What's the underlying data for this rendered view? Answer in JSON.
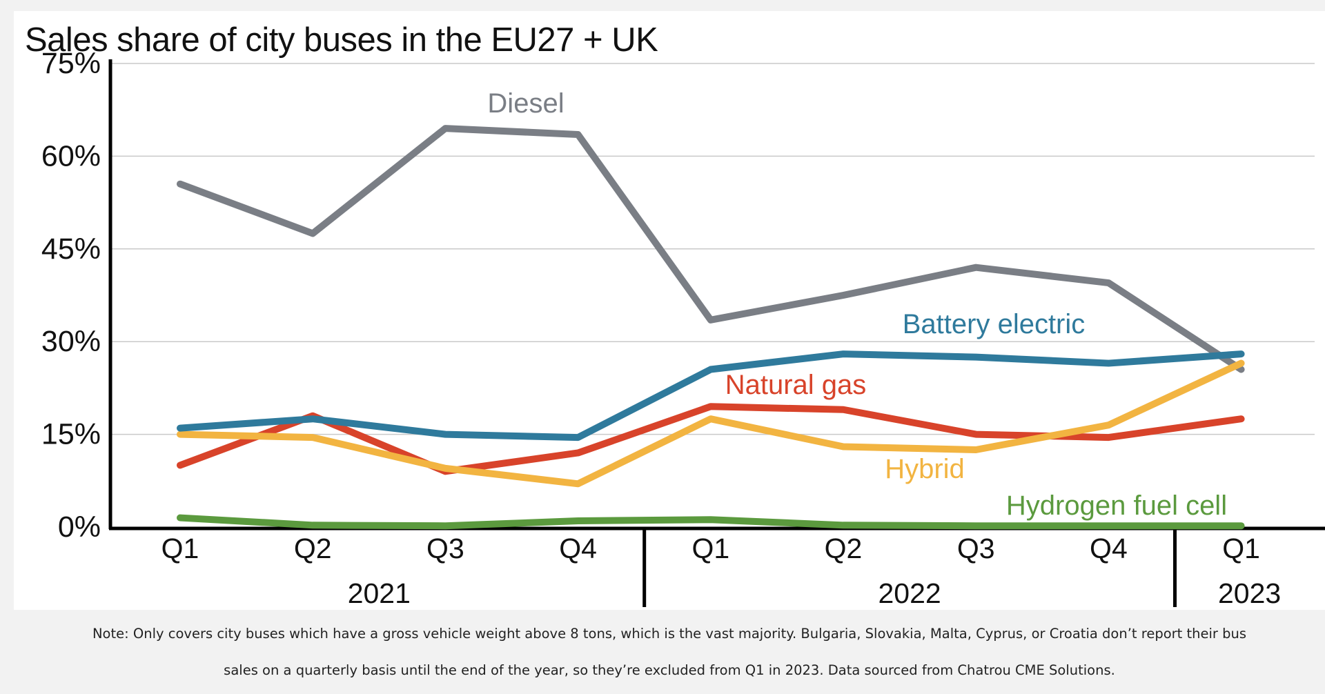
{
  "chart_data": {
    "type": "line",
    "title": "Sales share of city buses in the EU27 + UK",
    "categories": [
      "Q1",
      "Q2",
      "Q3",
      "Q4",
      "Q1",
      "Q2",
      "Q3",
      "Q4",
      "Q1"
    ],
    "years": [
      {
        "label": "2021",
        "quarters": [
          "Q1",
          "Q2",
          "Q3",
          "Q4"
        ]
      },
      {
        "label": "2022",
        "quarters": [
          "Q1",
          "Q2",
          "Q3",
          "Q4"
        ]
      },
      {
        "label": "2023",
        "quarters": [
          "Q1"
        ]
      }
    ],
    "ylim": [
      0,
      75
    ],
    "yticks": [
      0,
      15,
      30,
      45,
      60,
      75
    ],
    "ytick_labels": [
      "0%",
      "15%",
      "30%",
      "45%",
      "60%",
      "75%"
    ],
    "grid": true,
    "series": [
      {
        "name": "Diesel",
        "color": "#7a7e85",
        "values": [
          55.5,
          47.5,
          64.5,
          63.5,
          33.5,
          37.5,
          42,
          39.5,
          25.5
        ]
      },
      {
        "name": "Battery electric",
        "color": "#2f7a9c",
        "values": [
          16,
          17.5,
          15,
          14.5,
          25.5,
          28,
          27.5,
          26.5,
          28
        ]
      },
      {
        "name": "Natural gas",
        "color": "#d8432a",
        "values": [
          10,
          18,
          9,
          12,
          19.5,
          19,
          15,
          14.5,
          17.5
        ]
      },
      {
        "name": "Hybrid",
        "color": "#f2b441",
        "values": [
          15,
          14.5,
          9.5,
          7,
          17.5,
          13,
          12.5,
          16.5,
          26.5
        ]
      },
      {
        "name": "Hydrogen fuel cell",
        "color": "#5b9a3e",
        "values": [
          1.5,
          0.3,
          0.2,
          1,
          1.2,
          0.3,
          0.2,
          0.2,
          0.2
        ]
      }
    ]
  },
  "note": {
    "line1": "Note: Only covers city buses which have a gross vehicle weight above 8 tons, which is the vast majority. Bulgaria, Slovakia, Malta, Cyprus, or Croatia don’t report their bus",
    "line2": "sales on a quarterly basis until the end of the year, so they’re excluded from Q1 in 2023. Data sourced from Chatrou CME Solutions."
  }
}
